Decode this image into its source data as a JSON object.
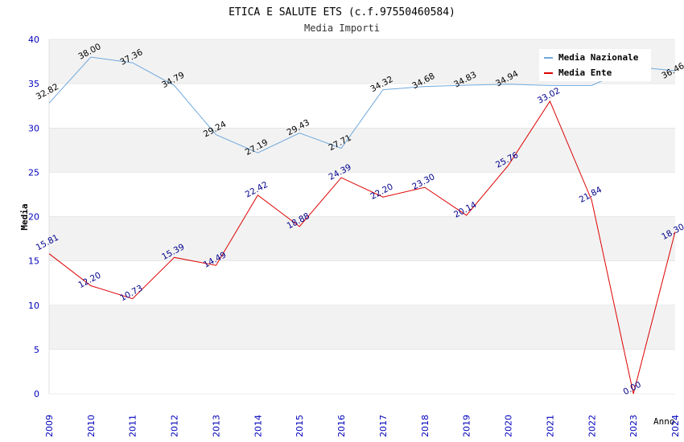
{
  "chart_data": {
    "type": "line",
    "title": "ETICA E SALUTE ETS (c.f.97550460584)",
    "subtitle": "Media Importi",
    "xlabel": "Anno",
    "ylabel": "Media",
    "ylim": [
      0,
      40
    ],
    "y_ticks": [
      "0",
      "5",
      "10",
      "15",
      "20",
      "25",
      "30",
      "35",
      "40"
    ],
    "categories": [
      "2009",
      "2010",
      "2011",
      "2012",
      "2013",
      "2014",
      "2015",
      "2016",
      "2017",
      "2018",
      "2019",
      "2020",
      "2021",
      "2022",
      "2023",
      "2024"
    ],
    "legend_position": "top-right",
    "series": [
      {
        "name": "Media Nazionale",
        "color": "#6fa8dc",
        "label_color": "#000000",
        "values": [
          32.82,
          38.0,
          37.36,
          34.79,
          29.24,
          27.19,
          29.43,
          27.71,
          34.32,
          34.68,
          34.83,
          34.94,
          34.8,
          34.8,
          36.9,
          36.46
        ],
        "labels": [
          "32.82",
          "38.00",
          "37.36",
          "34.79",
          "29.24",
          "27.19",
          "29.43",
          "27.71",
          "34.32",
          "34.68",
          "34.83",
          "34.94",
          "",
          "",
          "",
          "36.46"
        ]
      },
      {
        "name": "Media Ente",
        "color": "#dd0000",
        "label_color": "#00008b",
        "values": [
          15.81,
          12.2,
          10.73,
          15.39,
          14.49,
          22.42,
          18.88,
          24.39,
          22.2,
          23.3,
          20.14,
          25.76,
          33.02,
          21.84,
          0.0,
          18.3
        ],
        "labels": [
          "15.81",
          "12.20",
          "10.73",
          "15.39",
          "14.49",
          "22.42",
          "18.88",
          "24.39",
          "22.20",
          "23.30",
          "20.14",
          "25.76",
          "33.02",
          "21.84",
          "0.00",
          "18.30"
        ]
      }
    ],
    "colors": {
      "band": "#f2f2f2",
      "grid": "#d8d8d8",
      "tick_text": "#0000bb",
      "title_text": "#000000",
      "subtitle_text": "#333333"
    }
  }
}
